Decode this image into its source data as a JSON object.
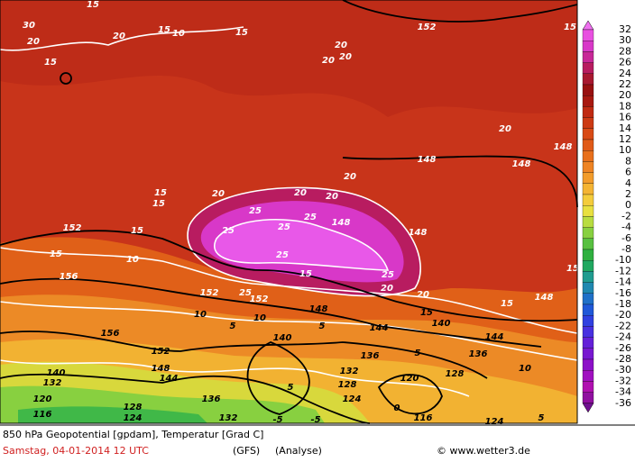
{
  "map": {
    "contour_labels": [
      "30",
      "20",
      "15",
      "15",
      "20",
      "15",
      "10",
      "15",
      "20",
      "20",
      "20",
      "152",
      "15",
      "20",
      "148",
      "148",
      "148",
      "15",
      "15",
      "20",
      "20",
      "20",
      "20",
      "25",
      "25",
      "148",
      "25",
      "25",
      "152",
      "15",
      "15",
      "10",
      "148",
      "25",
      "15",
      "25",
      "20",
      "152",
      "25",
      "152",
      "20",
      "156",
      "15",
      "148",
      "10",
      "148",
      "5",
      "10",
      "5",
      "144",
      "15",
      "140",
      "15",
      "156",
      "140",
      "144",
      "152",
      "5",
      "136",
      "148",
      "140",
      "144",
      "132",
      "128",
      "136",
      "120",
      "10",
      "132",
      "128",
      "5",
      "136",
      "124",
      "120",
      "128",
      "124",
      "116",
      "0",
      "132",
      "-5",
      "-5",
      "116",
      "124",
      "5"
    ]
  },
  "colorbar": {
    "labels": [
      32,
      30,
      28,
      26,
      24,
      22,
      20,
      18,
      16,
      14,
      12,
      10,
      8,
      6,
      4,
      2,
      0,
      -2,
      -4,
      -6,
      -8,
      -10,
      -12,
      -14,
      -16,
      -18,
      -20,
      -22,
      -24,
      -26,
      -28,
      -30,
      -32,
      -34,
      -36
    ],
    "colors": [
      "#e850e0",
      "#d838c8",
      "#c82898",
      "#b81c60",
      "#a81830",
      "#981010",
      "#a81810",
      "#c02a12",
      "#cc3a14",
      "#d84a16",
      "#e05a18",
      "#e8701c",
      "#ee8424",
      "#f29c2c",
      "#f4b434",
      "#f4cc3c",
      "#e8e040",
      "#b8dc40",
      "#88d040",
      "#58c040",
      "#30b040",
      "#20a860",
      "#209c90",
      "#2088b0",
      "#2070c8",
      "#2058d8",
      "#3040e0",
      "#4830e0",
      "#6420d8",
      "#7818d0",
      "#8c10c8",
      "#a010c0",
      "#b010b0",
      "#9010a0"
    ],
    "over": "#f070f0",
    "under": "#701090"
  },
  "footer": {
    "title": "850 hPa Geopotential [gpdam], Temperatur [Grad C]",
    "date": "Samstag, 04-01-2014  12 UTC",
    "model": "(GFS)",
    "run": "(Analyse)",
    "credit": "© www.wetter3.de"
  }
}
